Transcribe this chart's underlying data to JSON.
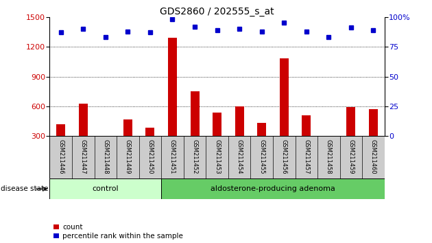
{
  "title": "GDS2860 / 202555_s_at",
  "samples": [
    "GSM211446",
    "GSM211447",
    "GSM211448",
    "GSM211449",
    "GSM211450",
    "GSM211451",
    "GSM211452",
    "GSM211453",
    "GSM211454",
    "GSM211455",
    "GSM211456",
    "GSM211457",
    "GSM211458",
    "GSM211459",
    "GSM211460"
  ],
  "counts": [
    420,
    630,
    270,
    470,
    385,
    1290,
    750,
    540,
    600,
    430,
    1080,
    510,
    260,
    590,
    570
  ],
  "percentiles": [
    87,
    90,
    83,
    88,
    87,
    98,
    92,
    89,
    90,
    88,
    95,
    88,
    83,
    91,
    89
  ],
  "ylim_left": [
    300,
    1500
  ],
  "ylim_right": [
    0,
    100
  ],
  "yticks_left": [
    300,
    600,
    900,
    1200,
    1500
  ],
  "yticks_right": [
    0,
    25,
    50,
    75,
    100
  ],
  "bar_color": "#cc0000",
  "dot_color": "#0000cc",
  "control_label": "control",
  "adenoma_label": "aldosterone-producing adenoma",
  "control_color": "#ccffcc",
  "adenoma_color": "#66cc66",
  "disease_state_label": "disease state",
  "legend_count_label": "count",
  "legend_pct_label": "percentile rank within the sample",
  "bg_color": "#ffffff",
  "tick_area_color": "#cccccc",
  "n_control": 5,
  "n_adenoma": 10,
  "title_fontsize": 10,
  "axis_fontsize": 8,
  "label_fontsize": 7.5
}
